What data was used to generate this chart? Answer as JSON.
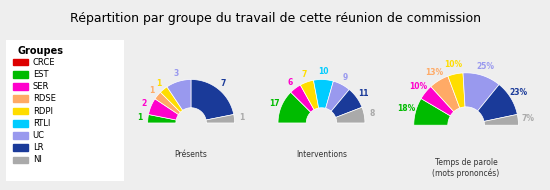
{
  "title": "Répartition par groupe du travail de cette réunion de commission",
  "groups": [
    "CRCE",
    "EST",
    "SER",
    "RDSE",
    "RDPI",
    "RTLI",
    "UC",
    "LR",
    "NI"
  ],
  "colors": [
    "#dd0000",
    "#00bb00",
    "#ff00cc",
    "#ffaa66",
    "#ffdd00",
    "#00ccff",
    "#9999ee",
    "#1a3a99",
    "#aaaaaa"
  ],
  "presents": [
    0,
    1,
    2,
    1,
    1,
    0,
    3,
    7,
    1
  ],
  "interventions": [
    0,
    17,
    6,
    0,
    7,
    10,
    9,
    11,
    8
  ],
  "temps_parole_pct": [
    0,
    18,
    10,
    13,
    10,
    0,
    25,
    23,
    7
  ],
  "chart_titles": [
    "Présents",
    "Interventions",
    "Temps de parole\n(mots prononcés)"
  ],
  "background_color": "#eeeeee",
  "legend_bg": "#ffffff",
  "label_colors": [
    "#dd0000",
    "#00bb00",
    "#ff00cc",
    "#ffaa66",
    "#ffdd00",
    "#00ccff",
    "#9999ee",
    "#1a3a99",
    "#aaaaaa"
  ]
}
